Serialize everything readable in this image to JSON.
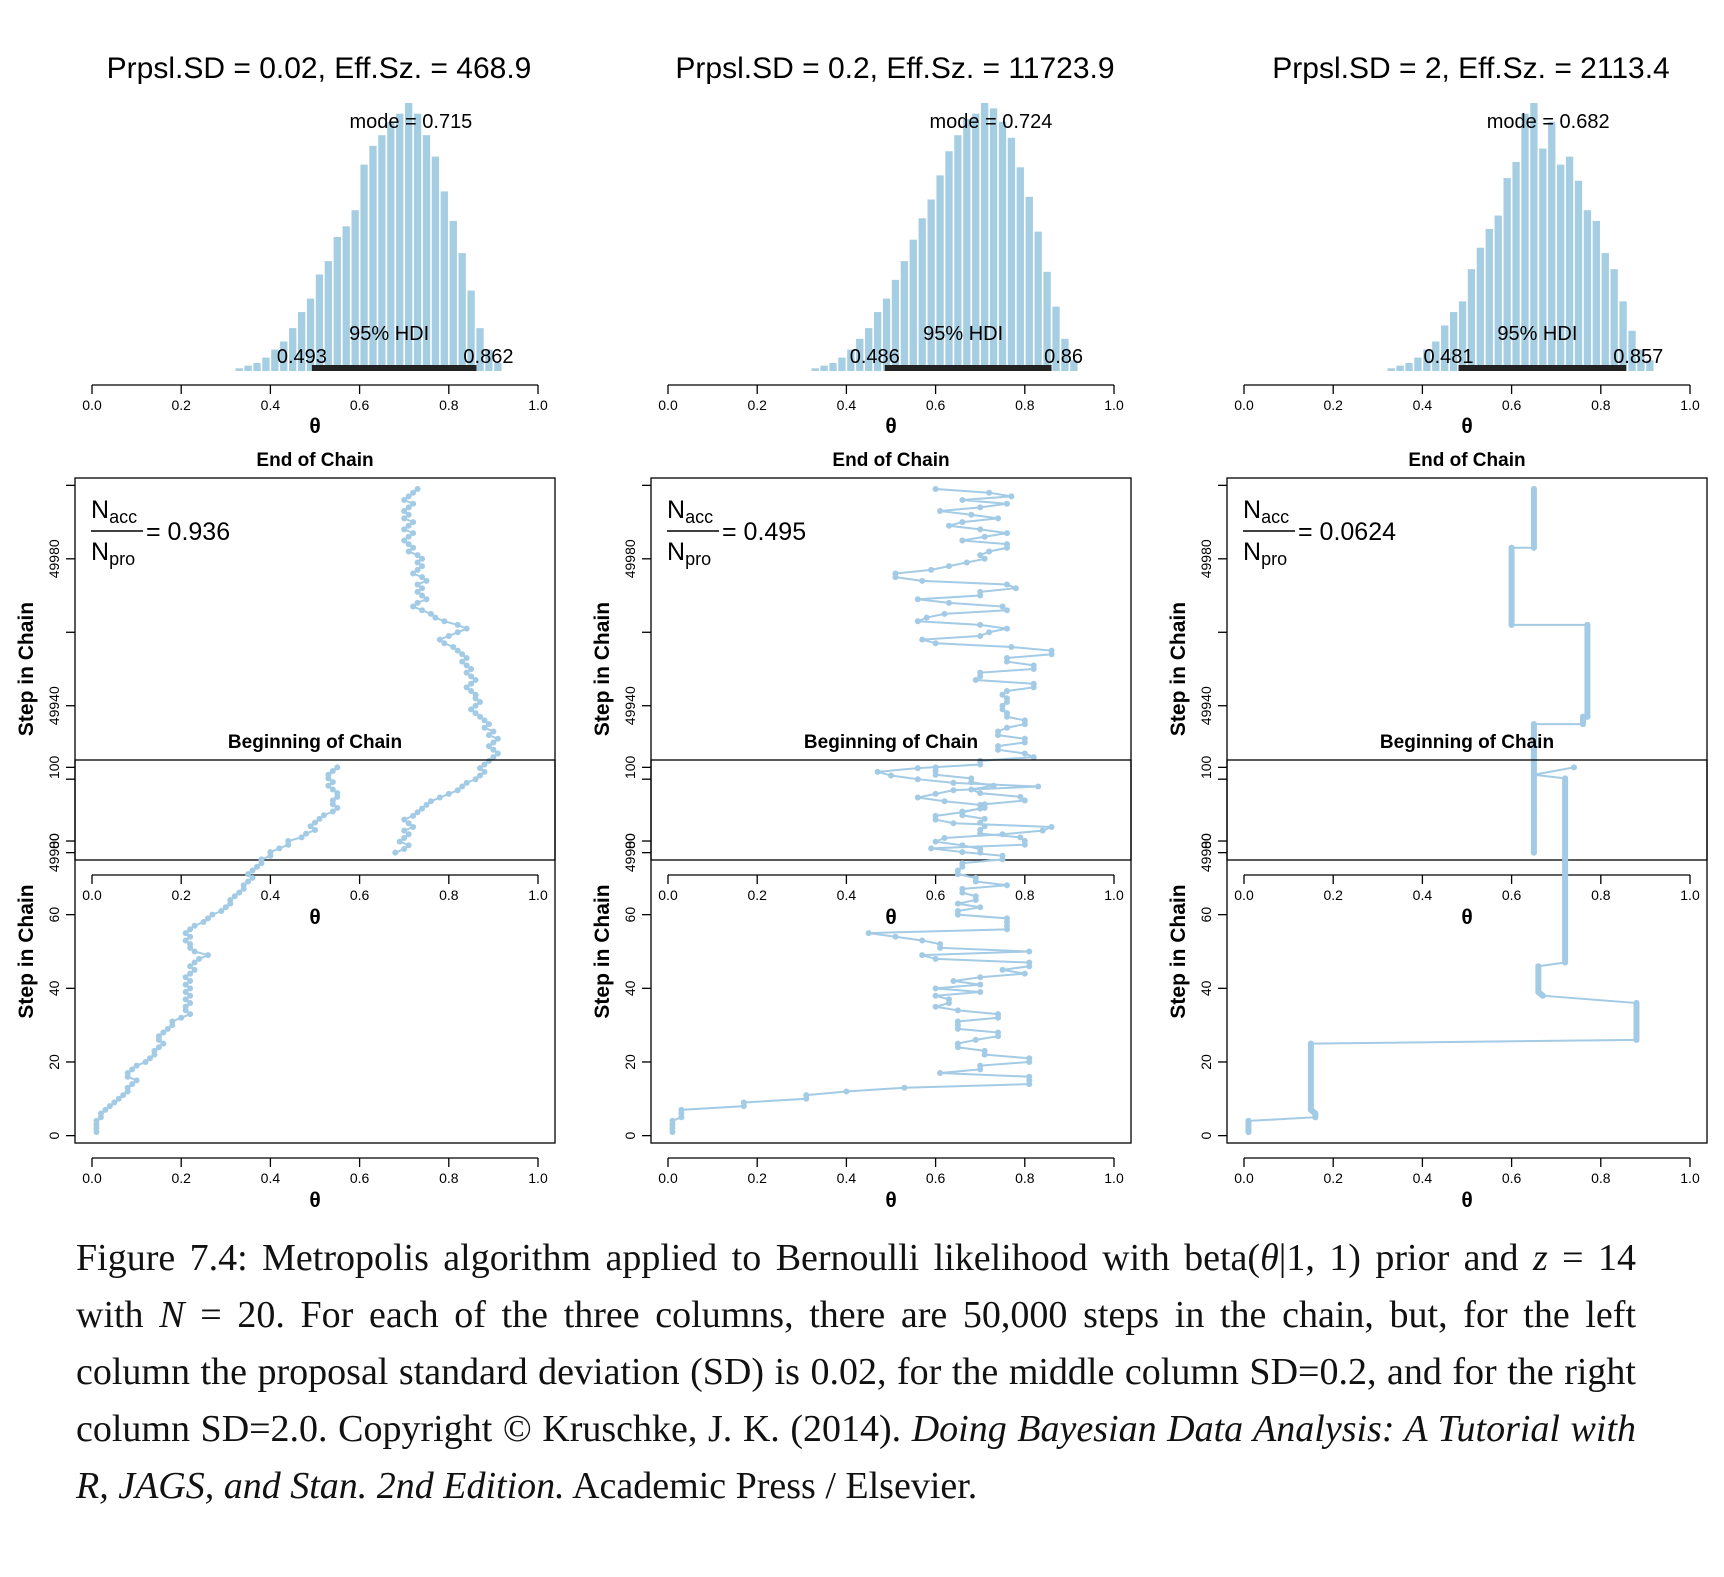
{
  "colors": {
    "bar": "#a6cee3",
    "trace": "#a3cbe5",
    "hdi": "#222222"
  },
  "x_axis": {
    "label": "θ",
    "ticks": [
      "0.0",
      "0.2",
      "0.4",
      "0.6",
      "0.8",
      "1.0"
    ]
  },
  "y_axis_label": "Step in Chain",
  "end_yticks": [
    "49900",
    "49940",
    "49980"
  ],
  "begin_yticks": [
    "0",
    "20",
    "40",
    "60",
    "80",
    "100"
  ],
  "labels": {
    "end_title": "End of Chain",
    "begin_title": "Beginning of Chain",
    "hdi": "95% HDI"
  },
  "panels": [
    {
      "title": "Prpsl.SD = 0.02, Eff.Sz. = 468.9",
      "mode_label": "mode = 0.715",
      "hdi_low": "0.493",
      "hdi_high": "0.862",
      "acc_value": "= 0.936"
    },
    {
      "title": "Prpsl.SD = 0.2, Eff.Sz. = 11723.9",
      "mode_label": "mode = 0.724",
      "hdi_low": "0.486",
      "hdi_high": "0.86",
      "acc_value": "= 0.495"
    },
    {
      "title": "Prpsl.SD = 2, Eff.Sz. = 2113.4",
      "mode_label": "mode = 0.682",
      "hdi_low": "0.481",
      "hdi_high": "0.857",
      "acc_value": "= 0.0624"
    }
  ],
  "caption": {
    "p1": "Figure 7.4: Metropolis algorithm applied to Bernoulli likelihood with beta(",
    "theta": "θ",
    "p2": "|1, 1) prior and ",
    "z": "z",
    "p3": " = 14 with ",
    "N": "N",
    "p4": " = 20. For each of the three columns, there are 50,000 steps in the chain, but, for the left column the proposal standard deviation (SD) is 0.02, for the middle column SD=0.2, and for the right column SD=2.0.   Copyright © Kruschke, J. K. (2014). ",
    "book": "Doing Bayesian Data Analysis: A Tutorial with R, JAGS, and Stan. 2nd Edition.",
    "p5": " Academic Press / Elsevier."
  },
  "chart_data": [
    {
      "type": "bar",
      "title": "Prpsl.SD = 0.02, Eff.Sz. = 468.9",
      "xlabel": "θ",
      "xlim": [
        0,
        1
      ],
      "mode": 0.715,
      "hdi": [
        0.493,
        0.862
      ],
      "bin_width": 0.02,
      "bins": [
        0.33,
        0.35,
        0.37,
        0.39,
        0.41,
        0.43,
        0.45,
        0.47,
        0.49,
        0.51,
        0.53,
        0.55,
        0.57,
        0.59,
        0.61,
        0.63,
        0.65,
        0.67,
        0.69,
        0.71,
        0.73,
        0.75,
        0.77,
        0.79,
        0.81,
        0.83,
        0.85,
        0.87,
        0.89,
        0.91
      ],
      "heights": [
        0.01,
        0.02,
        0.03,
        0.05,
        0.08,
        0.11,
        0.16,
        0.22,
        0.27,
        0.36,
        0.41,
        0.5,
        0.54,
        0.6,
        0.77,
        0.84,
        0.88,
        0.93,
        0.96,
        1.0,
        0.96,
        0.88,
        0.8,
        0.67,
        0.56,
        0.44,
        0.3,
        0.16,
        0.08,
        0.03
      ]
    },
    {
      "type": "bar",
      "title": "Prpsl.SD = 0.2, Eff.Sz. = 11723.9",
      "xlabel": "θ",
      "xlim": [
        0,
        1
      ],
      "mode": 0.724,
      "hdi": [
        0.486,
        0.86
      ],
      "bin_width": 0.02,
      "bins": [
        0.33,
        0.35,
        0.37,
        0.39,
        0.41,
        0.43,
        0.45,
        0.47,
        0.49,
        0.51,
        0.53,
        0.55,
        0.57,
        0.59,
        0.61,
        0.63,
        0.65,
        0.67,
        0.69,
        0.71,
        0.73,
        0.75,
        0.77,
        0.79,
        0.81,
        0.83,
        0.85,
        0.87,
        0.89,
        0.91
      ],
      "heights": [
        0.01,
        0.02,
        0.03,
        0.05,
        0.08,
        0.12,
        0.16,
        0.22,
        0.27,
        0.34,
        0.41,
        0.49,
        0.57,
        0.64,
        0.73,
        0.82,
        0.88,
        0.94,
        0.96,
        1.0,
        0.98,
        0.93,
        0.87,
        0.76,
        0.65,
        0.52,
        0.37,
        0.24,
        0.12,
        0.04
      ]
    },
    {
      "type": "bar",
      "title": "Prpsl.SD = 2, Eff.Sz. = 2113.4",
      "xlabel": "θ",
      "xlim": [
        0,
        1
      ],
      "mode": 0.682,
      "hdi": [
        0.481,
        0.857
      ],
      "bin_width": 0.02,
      "bins": [
        0.33,
        0.35,
        0.37,
        0.39,
        0.41,
        0.43,
        0.45,
        0.47,
        0.49,
        0.51,
        0.53,
        0.55,
        0.57,
        0.59,
        0.61,
        0.63,
        0.65,
        0.67,
        0.69,
        0.71,
        0.73,
        0.75,
        0.77,
        0.79,
        0.81,
        0.83,
        0.85,
        0.87,
        0.89,
        0.91
      ],
      "heights": [
        0.01,
        0.02,
        0.03,
        0.05,
        0.08,
        0.11,
        0.17,
        0.22,
        0.26,
        0.38,
        0.46,
        0.53,
        0.58,
        0.72,
        0.78,
        0.96,
        1.0,
        0.83,
        0.93,
        0.77,
        0.8,
        0.71,
        0.6,
        0.56,
        0.44,
        0.38,
        0.26,
        0.15,
        0.08,
        0.04
      ]
    },
    {
      "type": "line",
      "title": "End of Chain",
      "xlabel": "θ",
      "ylabel": "Step in Chain",
      "xlim": [
        0,
        1
      ],
      "ylim": [
        49898,
        50002
      ],
      "accept_rate": 0.936,
      "x": [
        0.68,
        0.7,
        0.71,
        0.69,
        0.7,
        0.71,
        0.7,
        0.72,
        0.71,
        0.7,
        0.72,
        0.73,
        0.74,
        0.75,
        0.76,
        0.78,
        0.8,
        0.82,
        0.83,
        0.84,
        0.86,
        0.87,
        0.88,
        0.87,
        0.88,
        0.89,
        0.9,
        0.91,
        0.9,
        0.89,
        0.9,
        0.91,
        0.89,
        0.9,
        0.88,
        0.89,
        0.88,
        0.87,
        0.86,
        0.85,
        0.86,
        0.87,
        0.86,
        0.86,
        0.85,
        0.84,
        0.85,
        0.86,
        0.85,
        0.84,
        0.85,
        0.84,
        0.83,
        0.84,
        0.83,
        0.82,
        0.81,
        0.79,
        0.78,
        0.8,
        0.82,
        0.84,
        0.82,
        0.79,
        0.77,
        0.76,
        0.74,
        0.72,
        0.73,
        0.75,
        0.74,
        0.73,
        0.74,
        0.73,
        0.75,
        0.74,
        0.72,
        0.73,
        0.74,
        0.73,
        0.74,
        0.73,
        0.71,
        0.72,
        0.71,
        0.7,
        0.71,
        0.72,
        0.7,
        0.71,
        0.72,
        0.7,
        0.71,
        0.7,
        0.71,
        0.72,
        0.7,
        0.71,
        0.72,
        0.73
      ],
      "y_start": 49900,
      "y_step": 1
    },
    {
      "type": "line",
      "title": "End of Chain",
      "xlabel": "θ",
      "ylabel": "Step in Chain",
      "xlim": [
        0,
        1
      ],
      "ylim": [
        49898,
        50002
      ],
      "accept_rate": 0.495,
      "x": [
        0.7,
        0.7,
        0.66,
        0.6,
        0.62,
        0.75,
        0.84,
        0.86,
        0.64,
        0.6,
        0.6,
        0.66,
        0.7,
        0.7,
        0.62,
        0.56,
        0.6,
        0.64,
        0.83,
        0.64,
        0.56,
        0.5,
        0.47,
        0.56,
        0.7,
        0.7,
        0.82,
        0.8,
        0.74,
        0.74,
        0.8,
        0.8,
        0.74,
        0.74,
        0.76,
        0.8,
        0.8,
        0.76,
        0.76,
        0.75,
        0.75,
        0.76,
        0.76,
        0.75,
        0.76,
        0.82,
        0.82,
        0.69,
        0.7,
        0.7,
        0.82,
        0.82,
        0.76,
        0.76,
        0.86,
        0.86,
        0.77,
        0.6,
        0.57,
        0.7,
        0.72,
        0.76,
        0.7,
        0.56,
        0.58,
        0.62,
        0.76,
        0.75,
        0.63,
        0.56,
        0.7,
        0.7,
        0.78,
        0.76,
        0.57,
        0.51,
        0.51,
        0.59,
        0.63,
        0.67,
        0.71,
        0.7,
        0.72,
        0.76,
        0.76,
        0.66,
        0.71,
        0.76,
        0.7,
        0.63,
        0.66,
        0.74,
        0.68,
        0.61,
        0.7,
        0.76,
        0.66,
        0.77,
        0.72,
        0.6
      ],
      "y_start": 49900,
      "y_step": 1
    },
    {
      "type": "line",
      "title": "End of Chain",
      "xlabel": "θ",
      "ylabel": "Step in Chain",
      "xlim": [
        0,
        1
      ],
      "ylim": [
        49898,
        50002
      ],
      "accept_rate": 0.0624,
      "points": [
        [
          0.65,
          49900
        ],
        [
          0.65,
          49911
        ],
        [
          0.65,
          49911
        ],
        [
          0.65,
          49935
        ],
        [
          0.76,
          49935
        ],
        [
          0.76,
          49937
        ],
        [
          0.77,
          49937
        ],
        [
          0.77,
          49962
        ],
        [
          0.6,
          49962
        ],
        [
          0.6,
          49983
        ],
        [
          0.65,
          49983
        ],
        [
          0.65,
          49999
        ]
      ]
    },
    {
      "type": "line",
      "title": "Beginning of Chain",
      "xlabel": "θ",
      "ylabel": "Step in Chain",
      "xlim": [
        0,
        1
      ],
      "ylim": [
        -2,
        102
      ],
      "x": [
        0.01,
        0.01,
        0.01,
        0.01,
        0.02,
        0.02,
        0.03,
        0.04,
        0.05,
        0.06,
        0.07,
        0.08,
        0.08,
        0.09,
        0.1,
        0.08,
        0.08,
        0.09,
        0.1,
        0.12,
        0.13,
        0.14,
        0.14,
        0.15,
        0.16,
        0.15,
        0.15,
        0.16,
        0.17,
        0.18,
        0.18,
        0.2,
        0.22,
        0.21,
        0.21,
        0.22,
        0.21,
        0.22,
        0.21,
        0.22,
        0.21,
        0.22,
        0.21,
        0.22,
        0.23,
        0.22,
        0.23,
        0.24,
        0.26,
        0.23,
        0.22,
        0.22,
        0.21,
        0.22,
        0.21,
        0.22,
        0.23,
        0.25,
        0.26,
        0.27,
        0.29,
        0.3,
        0.31,
        0.31,
        0.32,
        0.33,
        0.34,
        0.34,
        0.35,
        0.36,
        0.35,
        0.36,
        0.37,
        0.38,
        0.38,
        0.4,
        0.4,
        0.42,
        0.44,
        0.44,
        0.47,
        0.48,
        0.5,
        0.49,
        0.5,
        0.51,
        0.52,
        0.54,
        0.55,
        0.54,
        0.54,
        0.55,
        0.55,
        0.54,
        0.53,
        0.54,
        0.53,
        0.53,
        0.54,
        0.55
      ],
      "y_start": 1,
      "y_step": 1
    },
    {
      "type": "line",
      "title": "Beginning of Chain",
      "xlabel": "θ",
      "ylabel": "Step in Chain",
      "xlim": [
        0,
        1
      ],
      "ylim": [
        -2,
        102
      ],
      "x": [
        0.01,
        0.01,
        0.01,
        0.01,
        0.03,
        0.03,
        0.03,
        0.17,
        0.17,
        0.31,
        0.31,
        0.4,
        0.53,
        0.81,
        0.81,
        0.81,
        0.61,
        0.7,
        0.7,
        0.81,
        0.81,
        0.71,
        0.71,
        0.65,
        0.65,
        0.69,
        0.74,
        0.74,
        0.65,
        0.65,
        0.65,
        0.74,
        0.74,
        0.65,
        0.6,
        0.63,
        0.63,
        0.6,
        0.7,
        0.6,
        0.7,
        0.64,
        0.7,
        0.8,
        0.75,
        0.81,
        0.81,
        0.6,
        0.57,
        0.81,
        0.61,
        0.61,
        0.57,
        0.51,
        0.45,
        0.76,
        0.76,
        0.76,
        0.76,
        0.65,
        0.65,
        0.7,
        0.65,
        0.69,
        0.69,
        0.66,
        0.66,
        0.76,
        0.69,
        0.69,
        0.65,
        0.65,
        0.66,
        0.66,
        0.75,
        0.75,
        0.66,
        0.59,
        0.8,
        0.8,
        0.79,
        0.7,
        0.7,
        0.71,
        0.7,
        0.71,
        0.66,
        0.66,
        0.71,
        0.71,
        0.8,
        0.79,
        0.7,
        0.68,
        0.73,
        0.68,
        0.68,
        0.6,
        0.6,
        0.6
      ],
      "y_start": 1,
      "y_step": 1
    },
    {
      "type": "line",
      "title": "Beginning of Chain",
      "xlabel": "θ",
      "ylabel": "Step in Chain",
      "xlim": [
        0,
        1
      ],
      "ylim": [
        -2,
        102
      ],
      "points": [
        [
          0.01,
          1
        ],
        [
          0.01,
          4
        ],
        [
          0.16,
          5
        ],
        [
          0.16,
          6
        ],
        [
          0.15,
          7
        ],
        [
          0.15,
          25
        ],
        [
          0.88,
          26
        ],
        [
          0.88,
          36
        ],
        [
          0.67,
          38
        ],
        [
          0.66,
          39
        ],
        [
          0.66,
          46
        ],
        [
          0.72,
          47
        ],
        [
          0.72,
          97
        ],
        [
          0.65,
          98
        ],
        [
          0.74,
          100
        ]
      ]
    }
  ]
}
